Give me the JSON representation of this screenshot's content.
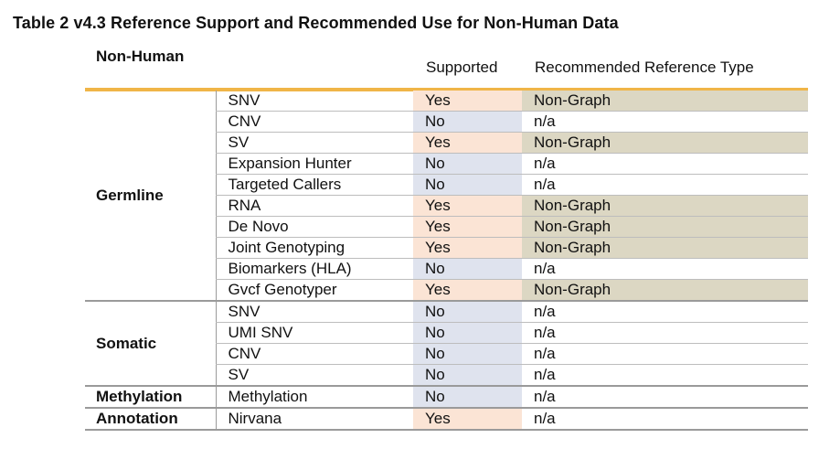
{
  "title": "Table 2 v4.3 Reference Support and Recommended Use for Non-Human Data",
  "header": {
    "category": "Non-Human",
    "supported": "Supported",
    "reference": "Recommended Reference Type"
  },
  "groups": [
    {
      "name": "Germline",
      "rows": [
        {
          "feature": "SNV",
          "supported": "Yes",
          "reference": "Non-Graph"
        },
        {
          "feature": "CNV",
          "supported": "No",
          "reference": "n/a"
        },
        {
          "feature": "SV",
          "supported": "Yes",
          "reference": "Non-Graph"
        },
        {
          "feature": "Expansion Hunter",
          "supported": "No",
          "reference": "n/a"
        },
        {
          "feature": "Targeted Callers",
          "supported": "No",
          "reference": "n/a"
        },
        {
          "feature": "RNA",
          "supported": "Yes",
          "reference": "Non-Graph"
        },
        {
          "feature": "De Novo",
          "supported": "Yes",
          "reference": "Non-Graph"
        },
        {
          "feature": "Joint Genotyping",
          "supported": "Yes",
          "reference": "Non-Graph"
        },
        {
          "feature": "Biomarkers (HLA)",
          "supported": "No",
          "reference": "n/a"
        },
        {
          "feature": "Gvcf Genotyper",
          "supported": "Yes",
          "reference": "Non-Graph"
        }
      ]
    },
    {
      "name": "Somatic",
      "rows": [
        {
          "feature": "SNV",
          "supported": "No",
          "reference": "n/a"
        },
        {
          "feature": "UMI SNV",
          "supported": "No",
          "reference": "n/a"
        },
        {
          "feature": "CNV",
          "supported": "No",
          "reference": "n/a"
        },
        {
          "feature": "SV",
          "supported": "No",
          "reference": "n/a"
        }
      ]
    },
    {
      "name": "Methylation",
      "rows": [
        {
          "feature": "Methylation",
          "supported": "No",
          "reference": "n/a"
        }
      ]
    },
    {
      "name": "Annotation",
      "rows": [
        {
          "feature": "Nirvana",
          "supported": "Yes",
          "reference": "n/a"
        }
      ]
    }
  ],
  "colors": {
    "header_rule": "#f0b548",
    "yes_fill": "#fbe4d5",
    "no_fill": "#dfe3ee",
    "non_graph_fill": "#dcd7c3"
  }
}
